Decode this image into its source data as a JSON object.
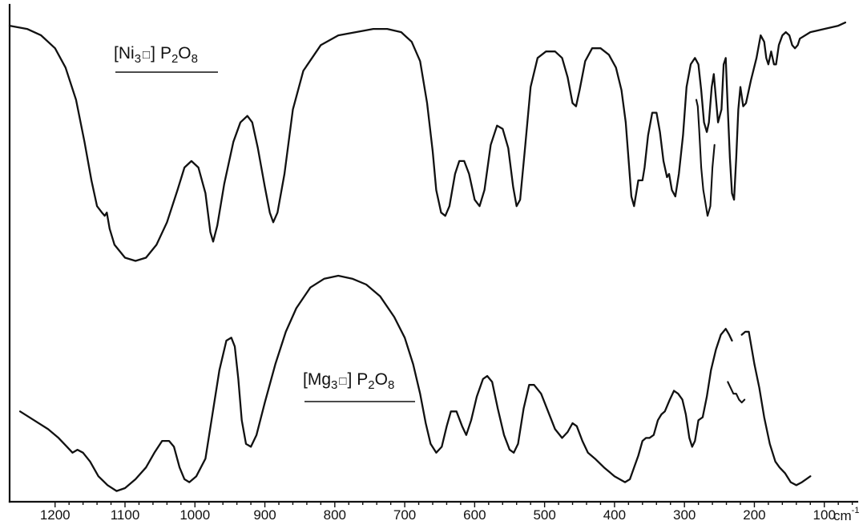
{
  "chart_data": {
    "type": "line",
    "title": "",
    "xlabel_unit": "cm",
    "xlabel_unit_exponent": "-1",
    "ylabel": "",
    "x_reversed": true,
    "xlim": [
      1265,
      55
    ],
    "ylim": [
      0,
      1
    ],
    "grid": false,
    "x_ticks": [
      1200,
      1100,
      1000,
      900,
      800,
      700,
      600,
      500,
      400,
      300,
      200,
      100
    ],
    "x_tick_labels": [
      "1200",
      "1100",
      "1000",
      "900",
      "800",
      "700",
      "600",
      "500",
      "400",
      "300",
      "200",
      "100"
    ],
    "series": [
      {
        "id": "ni",
        "name": "[Ni3 □] P2O8",
        "label_parts": {
          "open": "[",
          "element": "Ni",
          "sub": "3",
          "vacancy": "□",
          "close": "]",
          "anion_a": "P",
          "sub_a": "2",
          "anion_b": "O",
          "sub_b": "8"
        },
        "points": [
          [
            1265,
            0.96
          ],
          [
            1240,
            0.95
          ],
          [
            1220,
            0.93
          ],
          [
            1200,
            0.89
          ],
          [
            1185,
            0.83
          ],
          [
            1170,
            0.73
          ],
          [
            1158,
            0.6
          ],
          [
            1148,
            0.48
          ],
          [
            1140,
            0.4
          ],
          [
            1133,
            0.38
          ],
          [
            1129,
            0.37
          ],
          [
            1126,
            0.38
          ],
          [
            1122,
            0.33
          ],
          [
            1115,
            0.28
          ],
          [
            1100,
            0.24
          ],
          [
            1085,
            0.23
          ],
          [
            1070,
            0.24
          ],
          [
            1055,
            0.28
          ],
          [
            1040,
            0.35
          ],
          [
            1025,
            0.45
          ],
          [
            1015,
            0.52
          ],
          [
            1005,
            0.54
          ],
          [
            995,
            0.52
          ],
          [
            985,
            0.44
          ],
          [
            978,
            0.32
          ],
          [
            974,
            0.29
          ],
          [
            968,
            0.34
          ],
          [
            958,
            0.47
          ],
          [
            945,
            0.6
          ],
          [
            935,
            0.66
          ],
          [
            925,
            0.68
          ],
          [
            918,
            0.66
          ],
          [
            910,
            0.58
          ],
          [
            900,
            0.46
          ],
          [
            893,
            0.38
          ],
          [
            888,
            0.35
          ],
          [
            882,
            0.38
          ],
          [
            872,
            0.5
          ],
          [
            860,
            0.7
          ],
          [
            845,
            0.82
          ],
          [
            820,
            0.9
          ],
          [
            795,
            0.93
          ],
          [
            770,
            0.94
          ],
          [
            745,
            0.95
          ],
          [
            725,
            0.95
          ],
          [
            705,
            0.94
          ],
          [
            690,
            0.91
          ],
          [
            678,
            0.85
          ],
          [
            668,
            0.72
          ],
          [
            660,
            0.57
          ],
          [
            655,
            0.45
          ],
          [
            648,
            0.38
          ],
          [
            642,
            0.37
          ],
          [
            636,
            0.4
          ],
          [
            628,
            0.5
          ],
          [
            622,
            0.54
          ],
          [
            615,
            0.54
          ],
          [
            608,
            0.5
          ],
          [
            600,
            0.42
          ],
          [
            593,
            0.4
          ],
          [
            586,
            0.45
          ],
          [
            577,
            0.59
          ],
          [
            568,
            0.65
          ],
          [
            560,
            0.64
          ],
          [
            552,
            0.58
          ],
          [
            545,
            0.46
          ],
          [
            540,
            0.4
          ],
          [
            535,
            0.42
          ],
          [
            528,
            0.58
          ],
          [
            520,
            0.77
          ],
          [
            510,
            0.86
          ],
          [
            498,
            0.88
          ],
          [
            485,
            0.88
          ],
          [
            475,
            0.86
          ],
          [
            467,
            0.8
          ],
          [
            460,
            0.72
          ],
          [
            455,
            0.71
          ],
          [
            450,
            0.76
          ],
          [
            442,
            0.85
          ],
          [
            432,
            0.89
          ],
          [
            420,
            0.89
          ],
          [
            408,
            0.87
          ],
          [
            398,
            0.83
          ],
          [
            390,
            0.76
          ],
          [
            384,
            0.66
          ],
          [
            379,
            0.52
          ],
          [
            376,
            0.43
          ],
          [
            372,
            0.4
          ],
          [
            369,
            0.44
          ],
          [
            366,
            0.48
          ],
          [
            360,
            0.48
          ],
          [
            357,
            0.52
          ],
          [
            352,
            0.62
          ],
          [
            346,
            0.69
          ],
          [
            340,
            0.69
          ],
          [
            335,
            0.63
          ],
          [
            330,
            0.54
          ],
          [
            325,
            0.49
          ],
          [
            322,
            0.5
          ],
          [
            318,
            0.45
          ],
          [
            313,
            0.43
          ],
          [
            308,
            0.5
          ],
          [
            302,
            0.62
          ],
          [
            297,
            0.77
          ],
          [
            291,
            0.84
          ],
          [
            285,
            0.86
          ],
          [
            280,
            0.84
          ],
          [
            276,
            0.76
          ],
          [
            272,
            0.66
          ],
          [
            268,
            0.63
          ],
          [
            265,
            0.66
          ],
          [
            261,
            0.77
          ],
          [
            258,
            0.81
          ],
          [
            252,
            0.66
          ],
          [
            247,
            0.7
          ],
          [
            244,
            0.84
          ],
          [
            241,
            0.86
          ],
          [
            238,
            0.7
          ],
          [
            235,
            0.55
          ],
          [
            232,
            0.44
          ],
          [
            229,
            0.42
          ],
          [
            226,
            0.55
          ],
          [
            223,
            0.7
          ],
          [
            220,
            0.77
          ],
          [
            216,
            0.71
          ],
          [
            212,
            0.72
          ],
          [
            205,
            0.79
          ],
          [
            197,
            0.86
          ],
          [
            191,
            0.93
          ],
          [
            186,
            0.91
          ],
          [
            183,
            0.86
          ],
          [
            180,
            0.84
          ],
          [
            176,
            0.88
          ],
          [
            172,
            0.84
          ],
          [
            169,
            0.84
          ],
          [
            165,
            0.9
          ],
          [
            160,
            0.93
          ],
          [
            155,
            0.94
          ],
          [
            150,
            0.93
          ],
          [
            146,
            0.9
          ],
          [
            142,
            0.89
          ],
          [
            138,
            0.9
          ],
          [
            135,
            0.92
          ],
          [
            120,
            0.94
          ],
          [
            100,
            0.95
          ],
          [
            80,
            0.96
          ],
          [
            70,
            0.97
          ]
        ]
      },
      {
        "id": "ni_inset",
        "name": "",
        "points": [
          [
            283,
            0.73
          ],
          [
            281,
            0.71
          ],
          [
            279,
            0.64
          ],
          [
            276,
            0.52
          ],
          [
            273,
            0.45
          ],
          [
            270,
            0.41
          ],
          [
            267,
            0.37
          ],
          [
            263,
            0.4
          ],
          [
            260,
            0.52
          ],
          [
            257,
            0.59
          ]
        ]
      },
      {
        "id": "mg",
        "name": "[Mg3 □] P2O8",
        "label_parts": {
          "open": "[",
          "element": "Mg",
          "sub": "3",
          "vacancy": "□",
          "close": "]",
          "anion_a": "P",
          "sub_a": "2",
          "anion_b": "O",
          "sub_b": "8"
        },
        "points": [
          [
            1250,
            0.29
          ],
          [
            1230,
            0.26
          ],
          [
            1210,
            0.23
          ],
          [
            1195,
            0.2
          ],
          [
            1183,
            0.17
          ],
          [
            1175,
            0.15
          ],
          [
            1168,
            0.16
          ],
          [
            1160,
            0.15
          ],
          [
            1150,
            0.12
          ],
          [
            1138,
            0.07
          ],
          [
            1125,
            0.04
          ],
          [
            1112,
            0.02
          ],
          [
            1100,
            0.03
          ],
          [
            1085,
            0.06
          ],
          [
            1070,
            0.1
          ],
          [
            1058,
            0.15
          ],
          [
            1047,
            0.19
          ],
          [
            1037,
            0.19
          ],
          [
            1030,
            0.17
          ],
          [
            1022,
            0.1
          ],
          [
            1015,
            0.06
          ],
          [
            1008,
            0.05
          ],
          [
            998,
            0.07
          ],
          [
            985,
            0.13
          ],
          [
            975,
            0.28
          ],
          [
            965,
            0.43
          ],
          [
            955,
            0.53
          ],
          [
            948,
            0.54
          ],
          [
            943,
            0.51
          ],
          [
            938,
            0.4
          ],
          [
            933,
            0.26
          ],
          [
            927,
            0.18
          ],
          [
            920,
            0.17
          ],
          [
            912,
            0.21
          ],
          [
            900,
            0.32
          ],
          [
            885,
            0.45
          ],
          [
            870,
            0.56
          ],
          [
            855,
            0.64
          ],
          [
            835,
            0.71
          ],
          [
            815,
            0.74
          ],
          [
            795,
            0.75
          ],
          [
            775,
            0.74
          ],
          [
            755,
            0.72
          ],
          [
            735,
            0.68
          ],
          [
            715,
            0.61
          ],
          [
            700,
            0.54
          ],
          [
            688,
            0.45
          ],
          [
            678,
            0.35
          ],
          [
            670,
            0.25
          ],
          [
            663,
            0.18
          ],
          [
            655,
            0.15
          ],
          [
            647,
            0.17
          ],
          [
            640,
            0.24
          ],
          [
            634,
            0.29
          ],
          [
            626,
            0.29
          ],
          [
            618,
            0.24
          ],
          [
            612,
            0.21
          ],
          [
            605,
            0.26
          ],
          [
            597,
            0.34
          ],
          [
            588,
            0.4
          ],
          [
            582,
            0.41
          ],
          [
            575,
            0.39
          ],
          [
            567,
            0.3
          ],
          [
            558,
            0.21
          ],
          [
            550,
            0.16
          ],
          [
            544,
            0.15
          ],
          [
            538,
            0.18
          ],
          [
            530,
            0.3
          ],
          [
            522,
            0.38
          ],
          [
            515,
            0.38
          ],
          [
            505,
            0.35
          ],
          [
            495,
            0.29
          ],
          [
            485,
            0.23
          ],
          [
            475,
            0.2
          ],
          [
            467,
            0.22
          ],
          [
            460,
            0.25
          ],
          [
            454,
            0.24
          ],
          [
            446,
            0.19
          ],
          [
            438,
            0.15
          ],
          [
            428,
            0.13
          ],
          [
            415,
            0.1
          ],
          [
            400,
            0.07
          ],
          [
            385,
            0.05
          ],
          [
            378,
            0.06
          ],
          [
            372,
            0.1
          ],
          [
            366,
            0.14
          ],
          [
            360,
            0.19
          ],
          [
            355,
            0.2
          ],
          [
            350,
            0.2
          ],
          [
            344,
            0.21
          ],
          [
            338,
            0.26
          ],
          [
            333,
            0.28
          ],
          [
            328,
            0.29
          ],
          [
            321,
            0.33
          ],
          [
            315,
            0.36
          ],
          [
            309,
            0.35
          ],
          [
            303,
            0.33
          ],
          [
            298,
            0.28
          ],
          [
            293,
            0.2
          ],
          [
            289,
            0.17
          ],
          [
            285,
            0.19
          ],
          [
            280,
            0.26
          ],
          [
            274,
            0.27
          ],
          [
            268,
            0.34
          ],
          [
            262,
            0.43
          ],
          [
            255,
            0.5
          ],
          [
            248,
            0.55
          ],
          [
            241,
            0.57
          ],
          [
            236,
            0.55
          ],
          [
            232,
            0.53
          ]
        ]
      },
      {
        "id": "mg_tail",
        "name": "",
        "points": [
          [
            218,
            0.55
          ],
          [
            213,
            0.56
          ],
          [
            208,
            0.56
          ],
          [
            200,
            0.45
          ],
          [
            193,
            0.37
          ],
          [
            186,
            0.27
          ],
          [
            178,
            0.18
          ],
          [
            170,
            0.12
          ],
          [
            164,
            0.1
          ],
          [
            156,
            0.08
          ],
          [
            148,
            0.05
          ],
          [
            140,
            0.04
          ],
          [
            132,
            0.05
          ],
          [
            126,
            0.06
          ],
          [
            120,
            0.07
          ]
        ]
      },
      {
        "id": "mg_inset",
        "name": "",
        "points": [
          [
            238,
            0.39
          ],
          [
            234,
            0.37
          ],
          [
            230,
            0.35
          ],
          [
            226,
            0.35
          ],
          [
            222,
            0.33
          ],
          [
            218,
            0.32
          ],
          [
            214,
            0.33
          ]
        ]
      }
    ]
  }
}
